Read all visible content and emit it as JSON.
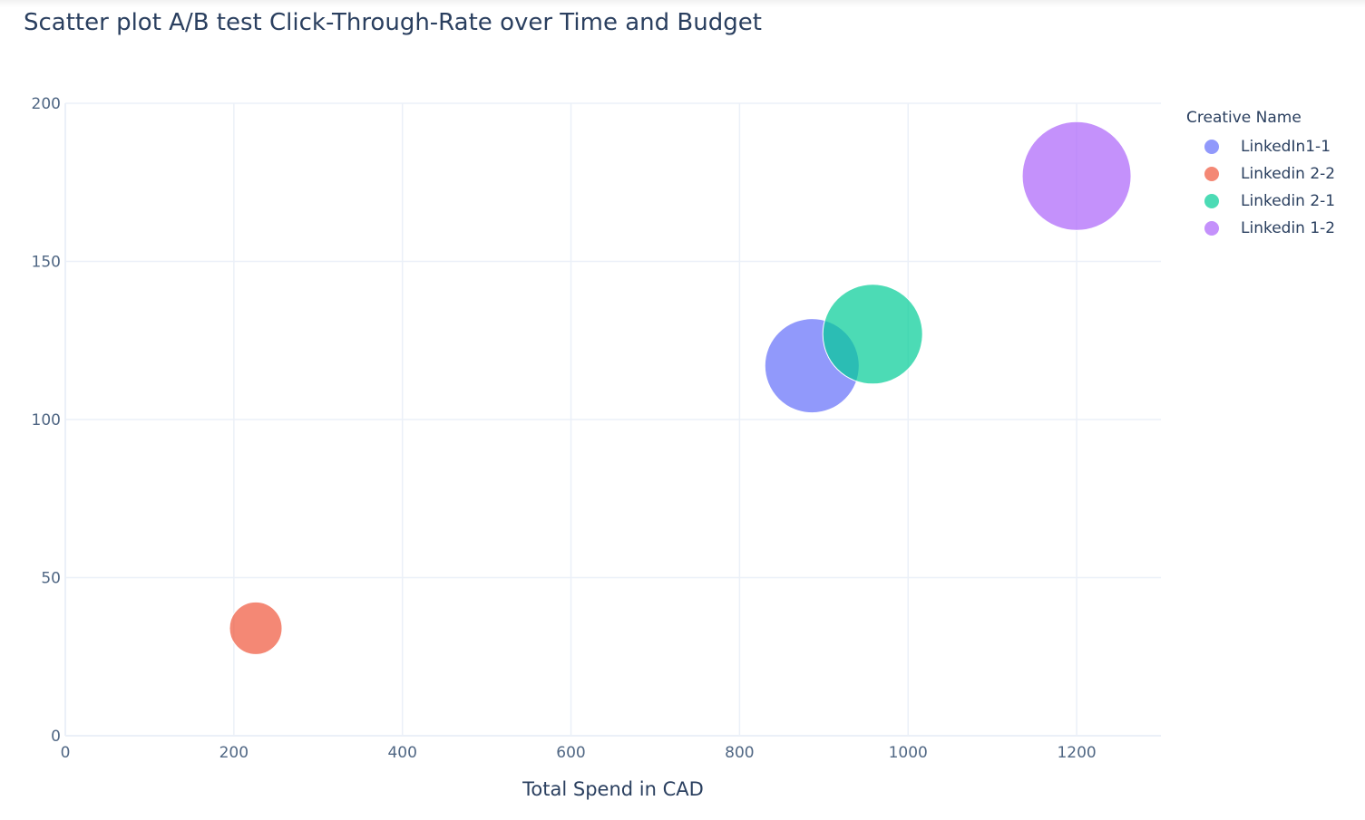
{
  "title": "Scatter plot A/B test Click-Through-Rate over Time and Budget",
  "chart_data": {
    "type": "scatter",
    "title": "Scatter plot A/B test Click-Through-Rate over Time and Budget",
    "xlabel": "Total Spend in CAD",
    "ylabel": "",
    "xlim": [
      0,
      1300
    ],
    "ylim": [
      0,
      200
    ],
    "x_ticks": [
      "0",
      "200",
      "400",
      "600",
      "800",
      "1000",
      "1200"
    ],
    "y_ticks": [
      "0",
      "50",
      "100",
      "150",
      "200"
    ],
    "grid": true,
    "legend_title": "Creative Name",
    "legend_position": "right",
    "series": [
      {
        "name": "LinkedIn1-1",
        "color": "#636efa",
        "points": [
          {
            "x": 886,
            "y": 117,
            "size": 104
          }
        ]
      },
      {
        "name": "Linkedin 2-2",
        "color": "#ef553b",
        "points": [
          {
            "x": 226,
            "y": 34,
            "size": 58
          }
        ]
      },
      {
        "name": "Linkedin 2-1",
        "color": "#00cc96",
        "points": [
          {
            "x": 958,
            "y": 127,
            "size": 110
          }
        ]
      },
      {
        "name": "Linkedin 1-2",
        "color": "#ab63fa",
        "points": [
          {
            "x": 1200,
            "y": 177,
            "size": 120
          }
        ]
      }
    ]
  }
}
